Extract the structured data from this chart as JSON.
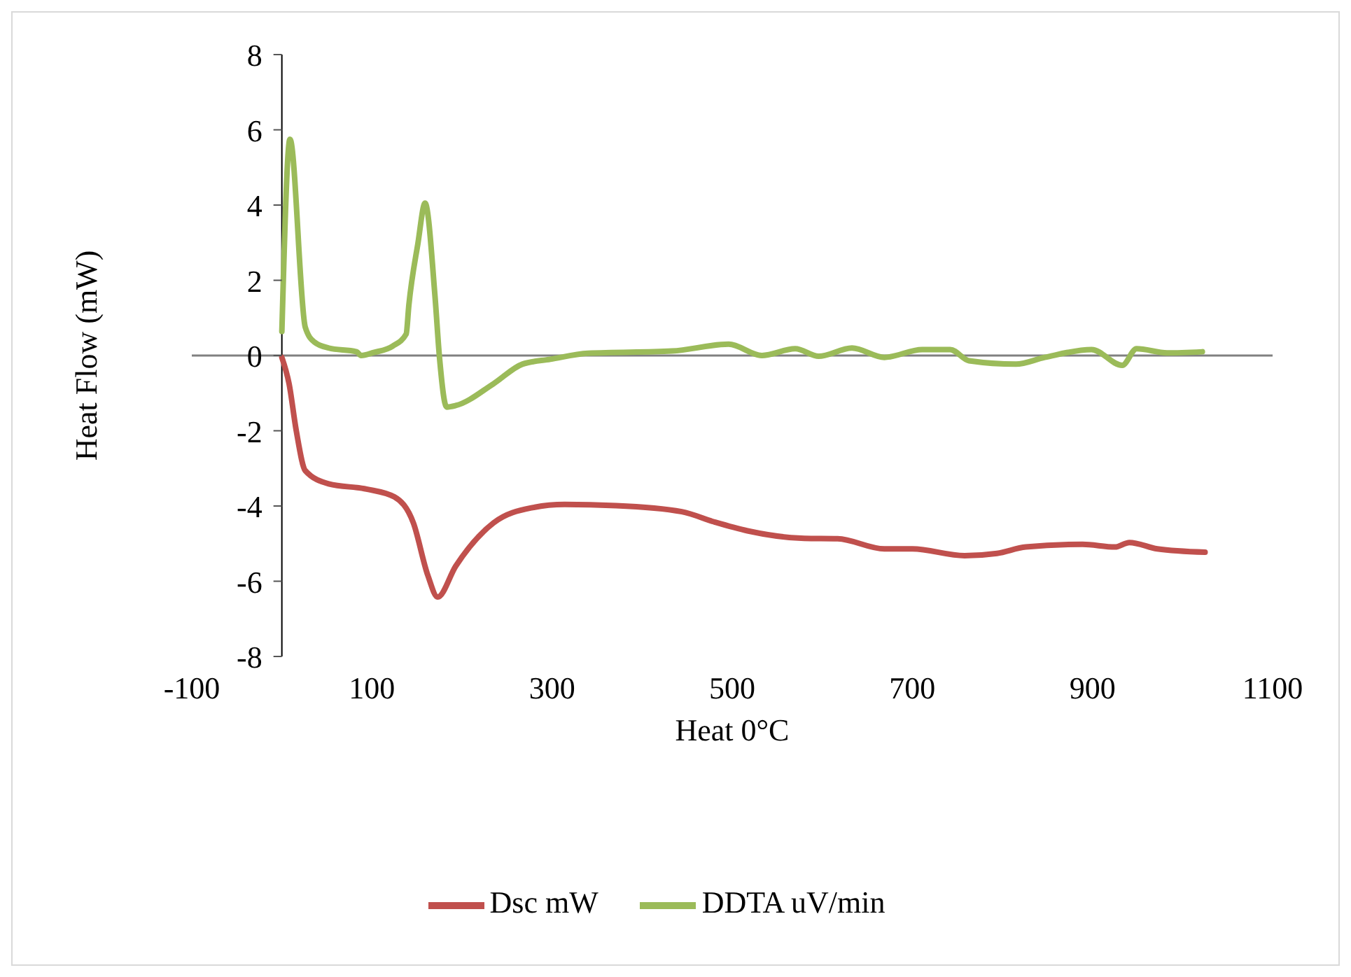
{
  "chart_data": {
    "type": "line",
    "xlabel": "Heat 0°C",
    "ylabel": "Heat Flow (mW)",
    "xlim": [
      -100,
      1100
    ],
    "xticks": [
      -100,
      100,
      300,
      500,
      700,
      900,
      1100
    ],
    "ylim": [
      -8,
      8
    ],
    "yticks": [
      -8,
      -6,
      -4,
      -2,
      0,
      2,
      4,
      6,
      8
    ],
    "legend": "bottom",
    "marker": "none",
    "line_style": "solid",
    "series": [
      {
        "name": "Dsc mW",
        "color": "#c0504d",
        "x": [
          0,
          8,
          16,
          26,
          52,
          94,
          125,
          146,
          162,
          173,
          193,
          235,
          277,
          314,
          371,
          444,
          481,
          517,
          580,
          617,
          669,
          700,
          758,
          794,
          826,
          889,
          925,
          941,
          972,
          1025
        ],
        "values": [
          -0.05,
          -0.75,
          -2.0,
          -3.06,
          -3.41,
          -3.55,
          -3.76,
          -4.45,
          -5.84,
          -6.42,
          -5.6,
          -4.45,
          -4.05,
          -3.96,
          -3.99,
          -4.15,
          -4.43,
          -4.66,
          -4.86,
          -4.87,
          -5.14,
          -5.14,
          -5.32,
          -5.26,
          -5.09,
          -5.02,
          -5.09,
          -4.97,
          -5.14,
          -5.23
        ]
      },
      {
        "name": "DDTA uV/min",
        "color": "#9bbb59",
        "x": [
          0,
          9,
          26,
          36,
          52,
          83,
          88,
          102,
          123,
          138,
          141,
          151,
          159,
          170,
          175,
          183,
          193,
          235,
          267,
          298,
          340,
          433,
          496,
          533,
          570,
          596,
          633,
          669,
          711,
          742,
          763,
          815,
          847,
          899,
          933,
          949,
          983,
          1022
        ],
        "values": [
          0.64,
          5.75,
          0.75,
          0.36,
          0.2,
          0.1,
          0.0,
          0.08,
          0.25,
          0.57,
          1.34,
          2.97,
          4.05,
          1.58,
          -0.05,
          -1.37,
          -1.33,
          -0.75,
          -0.23,
          -0.1,
          0.06,
          0.12,
          0.3,
          0.0,
          0.18,
          -0.02,
          0.2,
          -0.05,
          0.16,
          0.16,
          -0.14,
          -0.23,
          -0.05,
          0.16,
          -0.26,
          0.18,
          0.07,
          0.1
        ]
      }
    ]
  }
}
